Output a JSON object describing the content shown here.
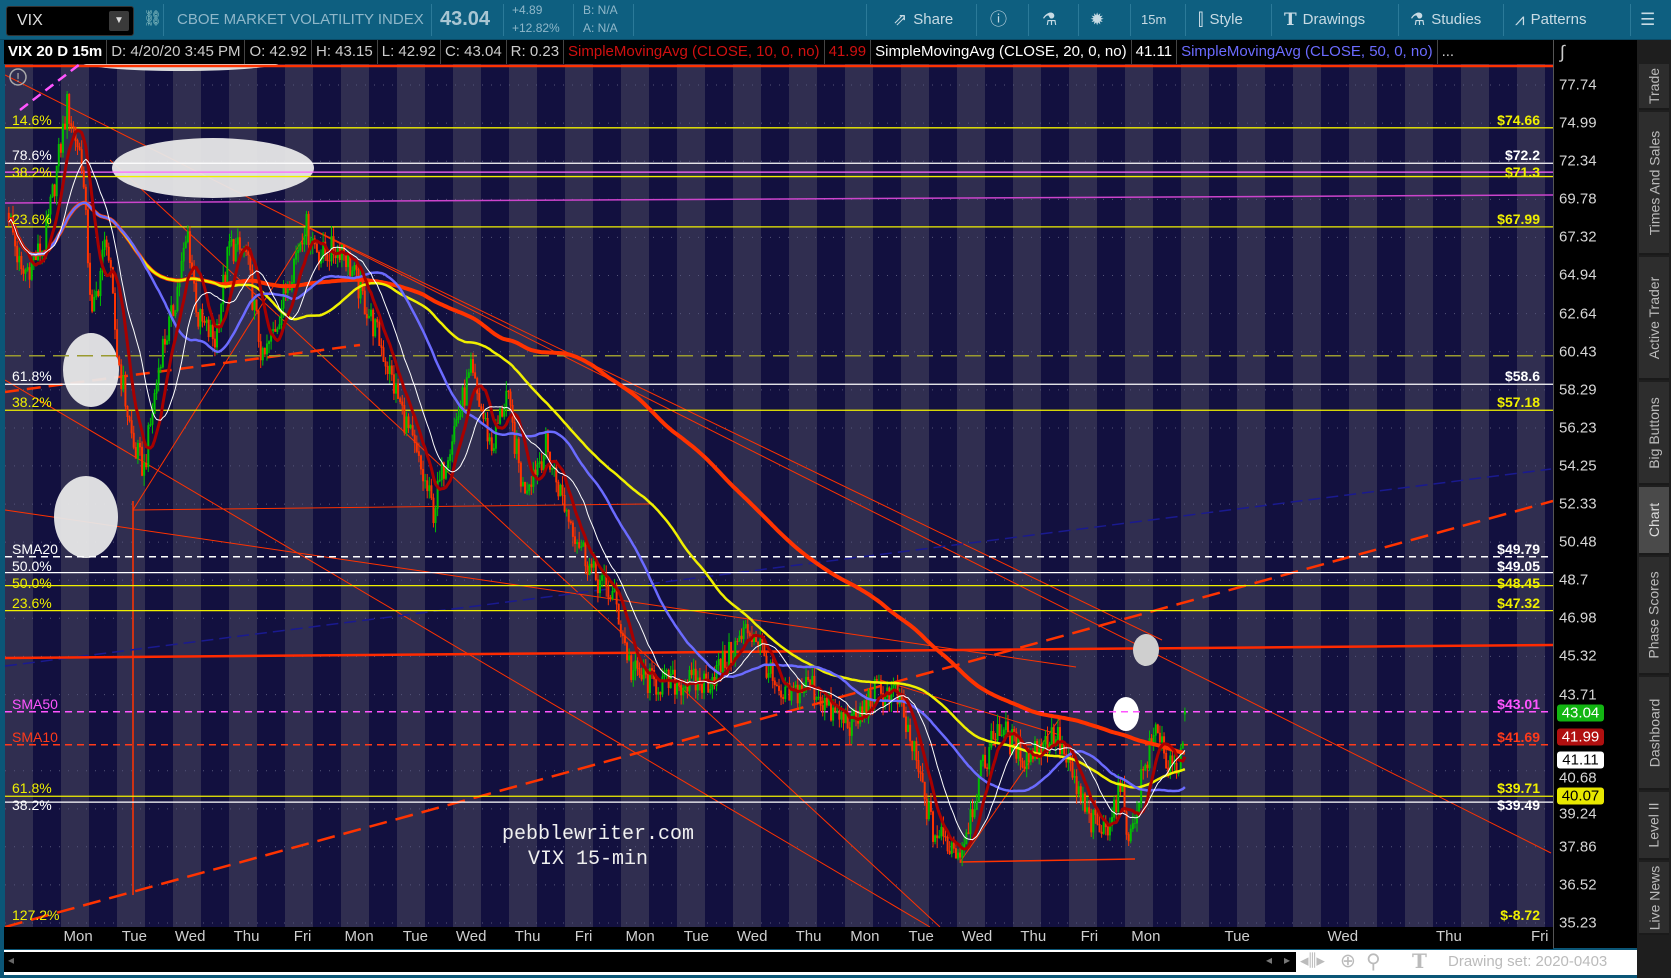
{
  "toolbar": {
    "symbol": "VIX",
    "title": "CBOE MARKET VOLATILITY INDEX",
    "last": "43.04",
    "change": "+4.89",
    "change_pct": "+12.82%",
    "bid": "B: N/A",
    "ask": "A: N/A",
    "share": "Share",
    "interval": "15m",
    "style": "Style",
    "drawings": "Drawings",
    "studies": "Studies",
    "patterns": "Patterns"
  },
  "infobar": {
    "chart": "VIX 20 D 15m",
    "date": "D: 4/20/20 3:45 PM",
    "open": "O: 42.92",
    "high": "H: 43.15",
    "low": "L: 42.92",
    "close": "C: 43.04",
    "range": "R: 0.23",
    "sma10": "SimpleMovingAvg (CLOSE, 10, 0, no)",
    "sma10_val": "41.99",
    "sma20": "SimpleMovingAvg (CLOSE, 20, 0, no)",
    "sma20_val": "41.11",
    "sma50": "SimpleMovingAvg (CLOSE, 50, 0, no)",
    "more": "..."
  },
  "sidebar": [
    "Trade",
    "Times And Sales",
    "Active Trader",
    "Big Buttons",
    "Chart",
    "Phase Scores",
    "Dashboard",
    "Level II",
    "Live News"
  ],
  "sidebar_selected": "Chart",
  "bottom": {
    "drawing_set": "Drawing set: 2020-0403"
  },
  "watermark": {
    "line1": "pebblewriter.com",
    "line2": "VIX 15-min"
  },
  "colors": {
    "up": "#00c000",
    "down": "#ff3300",
    "sma10": "#a80000",
    "sma20": "#ffffff",
    "sma50": "#6b6bff",
    "yellow_ma": "#f0f000",
    "thick_ma": "#ff3300",
    "bg_dark": "#12103f",
    "bg_light": "#302e50"
  },
  "chart_data": {
    "type": "candlestick",
    "symbol": "VIX",
    "aggregation": "15m",
    "y_scale": "log",
    "ylim": [
      35.23,
      77.74
    ],
    "y_ticks": [
      "77.74",
      "74.99",
      "72.34",
      "69.78",
      "67.32",
      "64.94",
      "62.64",
      "60.43",
      "58.29",
      "56.23",
      "54.25",
      "52.33",
      "50.48",
      "48.7",
      "46.98",
      "45.32",
      "43.71",
      "40.68",
      "39.24",
      "37.86",
      "36.52",
      "35.23"
    ],
    "x_labels": [
      "Mon",
      "Tue",
      "Wed",
      "Thu",
      "Fri",
      "Mon",
      "Tue",
      "Wed",
      "Thu",
      "Fri",
      "Mon",
      "Tue",
      "Wed",
      "Thu",
      "Mon",
      "Tue",
      "Wed",
      "Thu",
      "Fri",
      "Mon"
    ],
    "x_labels_future": [
      "Tue",
      "Wed",
      "Thu",
      "Fri"
    ],
    "price_path": [
      [
        "3/20 09:30",
        68.9
      ],
      [
        "3/20 11:00",
        64.9
      ],
      [
        "3/20 13:45",
        66.8
      ],
      [
        "3/23 09:45",
        76.2
      ],
      [
        "3/23 11:30",
        72.5
      ],
      [
        "3/23 12:45",
        62.3
      ],
      [
        "3/23 14:30",
        67.5
      ],
      [
        "3/23 15:45",
        60.4
      ],
      [
        "3/24 11:00",
        55.2
      ],
      [
        "3/24 12:15",
        54.1
      ],
      [
        "3/24 14:15",
        60.4
      ],
      [
        "3/24 15:30",
        62.3
      ],
      [
        "3/25 10:45",
        67.5
      ],
      [
        "3/25 12:00",
        62.3
      ],
      [
        "3/25 14:00",
        61.1
      ],
      [
        "3/25 15:45",
        66.8
      ],
      [
        "3/26 11:00",
        66.2
      ],
      [
        "3/26 13:00",
        59.8
      ],
      [
        "3/26 14:45",
        62.3
      ],
      [
        "3/27 11:15",
        68.2
      ],
      [
        "3/27 13:15",
        66.2
      ],
      [
        "3/27 15:45",
        66.8
      ],
      [
        "3/30 11:30",
        63.6
      ],
      [
        "3/30 13:30",
        61.1
      ],
      [
        "3/31 10:00",
        56.4
      ],
      [
        "3/31 13:15",
        52.0
      ],
      [
        "3/31 15:00",
        55.2
      ],
      [
        "4/1 11:00",
        59.2
      ],
      [
        "4/1 13:30",
        55.2
      ],
      [
        "4/1 15:15",
        58.1
      ],
      [
        "4/2 10:30",
        53.1
      ],
      [
        "4/2 13:15",
        55.2
      ],
      [
        "4/2 15:45",
        52.0
      ],
      [
        "4/3 12:15",
        48.9
      ],
      [
        "4/3 14:45",
        47.9
      ],
      [
        "4/6 10:00",
        44.7
      ],
      [
        "4/6 12:30",
        44.2
      ],
      [
        "4/7 09:30",
        44.2
      ],
      [
        "4/7 12:15",
        44.2
      ],
      [
        "4/7 14:45",
        45.2
      ],
      [
        "4/8 10:30",
        46.5
      ],
      [
        "4/8 11:45",
        46.1
      ],
      [
        "4/8 14:15",
        43.4
      ],
      [
        "4/9 11:15",
        44.2
      ],
      [
        "4/9 14:00",
        42.9
      ],
      [
        "4/13 09:45",
        42.5
      ],
      [
        "4/13 12:15",
        43.8
      ],
      [
        "4/13 14:45",
        43.8
      ],
      [
        "4/14 10:00",
        41.6
      ],
      [
        "4/14 12:30",
        38.4
      ],
      [
        "4/14 15:45",
        37.7
      ],
      [
        "4/15 11:45",
        40.8
      ],
      [
        "4/15 13:30",
        42.5
      ],
      [
        "4/16 10:00",
        41.2
      ],
      [
        "4/16 13:45",
        42.1
      ],
      [
        "4/16 15:15",
        40.8
      ],
      [
        "4/17 11:00",
        38.8
      ],
      [
        "4/17 12:45",
        38.4
      ],
      [
        "4/17 14:45",
        40.0
      ],
      [
        "4/17 16:00",
        38.1
      ],
      [
        "4/20 10:30",
        40.4
      ],
      [
        "4/20 12:30",
        42.5
      ],
      [
        "4/20 13:45",
        40.8
      ],
      [
        "4/20 15:00",
        40.4
      ],
      [
        "4/20 15:45",
        43.04
      ]
    ],
    "last_bar": {
      "open": 42.92,
      "high": 43.15,
      "low": 42.92,
      "close": 43.04
    },
    "price_badges": [
      {
        "value": "43.04",
        "bg": "#12b512",
        "fg": "#ffffff"
      },
      {
        "value": "41.99",
        "bg": "#b01010",
        "fg": "#ffffff"
      },
      {
        "value": "41.11",
        "bg": "#ffffff",
        "fg": "#000000"
      },
      {
        "value": "40.07",
        "bg": "#e8e800",
        "fg": "#000000"
      }
    ],
    "levels": [
      {
        "label": "14.6%",
        "price": 74.66,
        "right": "$74.66",
        "color": "#f0f000",
        "style": "solid"
      },
      {
        "label": "78.6%",
        "price": 72.2,
        "right": "$72.2",
        "color": "#ffffff",
        "style": "solid"
      },
      {
        "label": "",
        "price": 71.6,
        "right": "",
        "color": "#ff66ff",
        "style": "solid"
      },
      {
        "label": "38.2%",
        "price": 71.3,
        "right": "$71.3",
        "color": "#f0f000",
        "style": "solid"
      },
      {
        "label": "23.6%",
        "price": 67.99,
        "right": "$67.99",
        "color": "#f0f000",
        "style": "solid"
      },
      {
        "label": "",
        "price": 60.2,
        "right": "",
        "color": "#9a9a30",
        "style": "dashed"
      },
      {
        "label": "61.8%",
        "price": 58.6,
        "right": "$58.6",
        "color": "#ffffff",
        "style": "solid"
      },
      {
        "label": "38.2%",
        "price": 57.18,
        "right": "$57.18",
        "color": "#f0f000",
        "style": "solid"
      },
      {
        "label": "SMA20",
        "price": 49.79,
        "right": "$49.79",
        "color": "#ffffff",
        "style": "dashed"
      },
      {
        "label": "50.0%",
        "price": 49.05,
        "right": "$49.05",
        "color": "#ffffff",
        "style": "solid"
      },
      {
        "label": "50.0%",
        "price": 48.45,
        "right": "$48.45",
        "color": "#f0f000",
        "style": "solid"
      },
      {
        "label": "23.6%",
        "price": 47.32,
        "right": "$47.32",
        "color": "#f0f000",
        "style": "solid"
      },
      {
        "label": "SMA50",
        "price": 43.01,
        "right": "$43.01",
        "color": "#ff55ff",
        "style": "dashed"
      },
      {
        "label": "SMA10",
        "price": 41.69,
        "right": "$41.69",
        "color": "#ff3a1a",
        "style": "dashed"
      },
      {
        "label": "61.8%",
        "price": 39.71,
        "right": "$39.71",
        "color": "#f0f000",
        "style": "solid"
      },
      {
        "label": "38.2%",
        "price": 39.49,
        "right": "$39.49",
        "color": "#ffffff",
        "style": "solid"
      },
      {
        "label": "127.2%",
        "price": -8.72,
        "right": "$-8.72",
        "color": "#f0f000",
        "style": "none"
      }
    ]
  }
}
